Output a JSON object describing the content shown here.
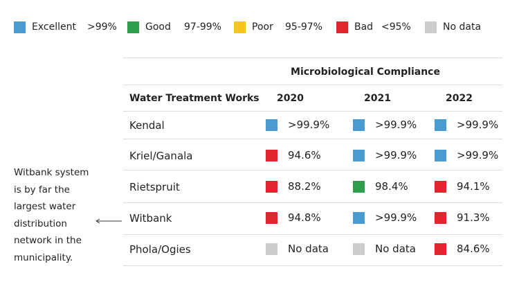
{
  "legend": [
    {
      "label": "Excellent",
      "range": ">99%",
      "color": "#4a9bd1"
    },
    {
      "label": "Good",
      "range": "97-99%",
      "color": "#2e9e4a"
    },
    {
      "label": "Poor",
      "range": "95-97%",
      "color": "#f5c518"
    },
    {
      "label": "Bad",
      "range": "<95%",
      "color": "#e0262d"
    },
    {
      "label": "No data",
      "color": "#cccccc"
    }
  ],
  "table": {
    "group_header": "Microbiological Compliance",
    "columns": [
      "Water Treatment Works",
      "2020",
      "2021",
      "2022"
    ],
    "rows": [
      {
        "name": "Kendal",
        "cells": [
          {
            "color": "#4a9bd1",
            "text": ">99.9%"
          },
          {
            "color": "#4a9bd1",
            "text": ">99.9%"
          },
          {
            "color": "#4a9bd1",
            "text": ">99.9%"
          }
        ]
      },
      {
        "name": "Kriel/Ganala",
        "cells": [
          {
            "color": "#e0262d",
            "text": "94.6%"
          },
          {
            "color": "#4a9bd1",
            "text": ">99.9%"
          },
          {
            "color": "#4a9bd1",
            "text": ">99.9%"
          }
        ]
      },
      {
        "name": "Rietspruit",
        "cells": [
          {
            "color": "#e0262d",
            "text": "88.2%"
          },
          {
            "color": "#2e9e4a",
            "text": "98.4%"
          },
          {
            "color": "#e0262d",
            "text": "94.1%"
          }
        ]
      },
      {
        "name": "Witbank",
        "cells": [
          {
            "color": "#e0262d",
            "text": "94.8%"
          },
          {
            "color": "#4a9bd1",
            "text": ">99.9%"
          },
          {
            "color": "#e0262d",
            "text": "91.3%"
          }
        ]
      },
      {
        "name": "Phola/Ogies",
        "cells": [
          {
            "color": "#cccccc",
            "text": "No data"
          },
          {
            "color": "#cccccc",
            "text": "No data"
          },
          {
            "color": "#e0262d",
            "text": "84.6%"
          }
        ]
      }
    ]
  },
  "note": {
    "lines": [
      "Witbank system",
      "is by far the",
      "largest water",
      "distribution",
      "network in the",
      "municipality."
    ]
  }
}
